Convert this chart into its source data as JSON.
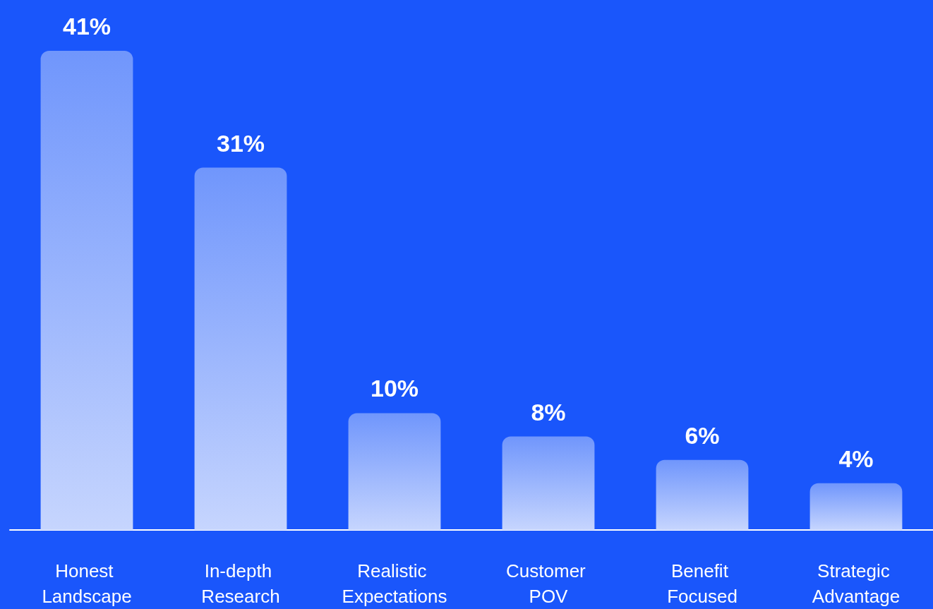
{
  "chart_data": {
    "type": "bar",
    "categories": [
      "Honest Landscape",
      "In-depth Research",
      "Realistic Expectations",
      "Customer POV",
      "Benefit Focused",
      "Strategic Advantage"
    ],
    "values": [
      41,
      31,
      10,
      8,
      6,
      4
    ],
    "value_labels": [
      "41%",
      "31%",
      "10%",
      "8%",
      "6%",
      "4%"
    ],
    "color": "#7096fc"
  }
}
